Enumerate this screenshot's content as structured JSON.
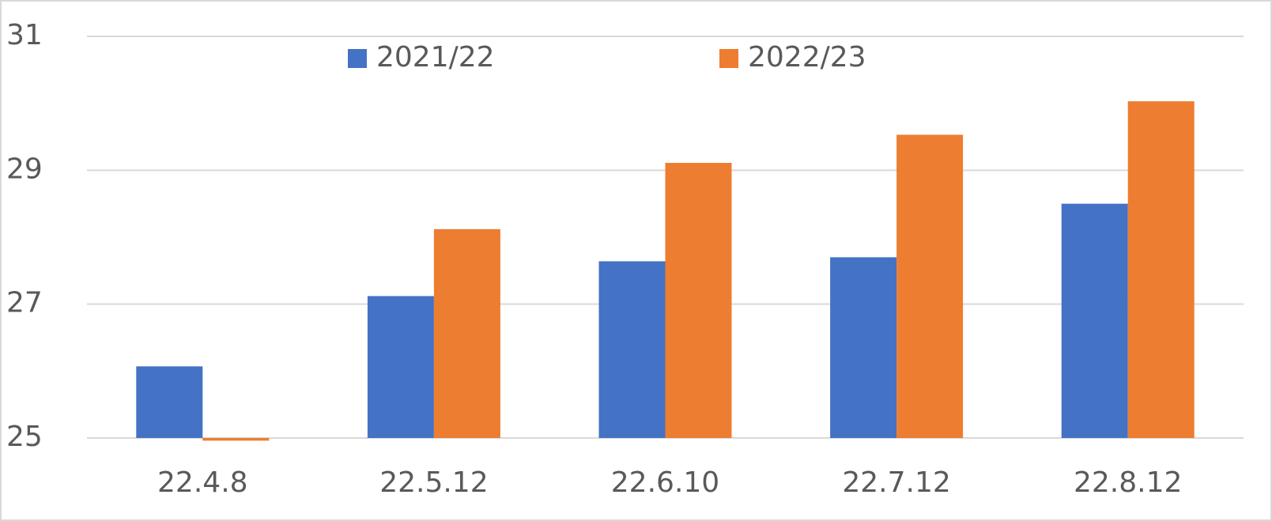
{
  "chart_data": {
    "type": "bar",
    "categories": [
      "22.4.8",
      "22.5.12",
      "22.6.10",
      "22.7.12",
      "22.8.12"
    ],
    "series": [
      {
        "name": "2021/22",
        "color": "#4472c4",
        "values": [
          26.07,
          27.12,
          27.64,
          27.7,
          28.5
        ]
      },
      {
        "name": "2022/23",
        "color": "#ed7d31",
        "values": [
          24.96,
          28.12,
          29.11,
          29.53,
          30.03
        ]
      }
    ],
    "ylim": [
      25,
      31
    ],
    "yticks": [
      25,
      27,
      29,
      31
    ],
    "grid": true,
    "legend": "top"
  }
}
